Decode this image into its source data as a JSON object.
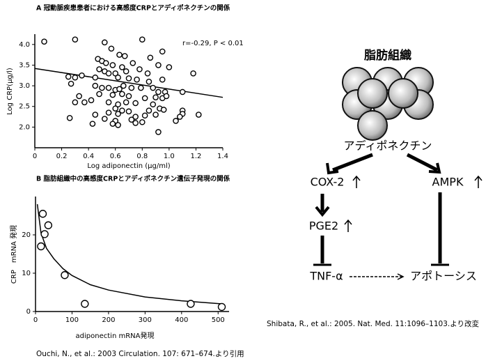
{
  "chart_data": [
    {
      "type": "scatter",
      "title": "A 冠動脈疾患患者における高感度CRPとアディポネクチンの関係",
      "x_label": "Log adiponectin (μg/ml)",
      "y_label": "Log CRP(μg/l)",
      "annotation": "r=-0.29, P < 0.01",
      "color": "#000000",
      "xlim": [
        0,
        1.4
      ],
      "ylim": [
        1.5,
        4.25
      ],
      "xticks": [
        0,
        0.2,
        0.4,
        0.6,
        0.8,
        {
          "value": 1,
          "label": "1.0"
        },
        1.2,
        1.4
      ],
      "yticks": [
        {
          "value": 2,
          "label": "2.0"
        },
        2.5,
        {
          "value": 3,
          "label": "3.0"
        },
        3.5,
        {
          "value": 4,
          "label": "4.0"
        }
      ],
      "x": [
        0.07,
        0.3,
        0.52,
        0.8,
        0.57,
        0.63,
        0.67,
        0.86,
        0.95,
        0.47,
        0.5,
        0.53,
        0.58,
        0.65,
        0.73,
        0.92,
        0.48,
        0.52,
        0.55,
        0.6,
        0.68,
        0.78,
        0.84,
        1.0,
        1.18,
        0.25,
        0.3,
        0.35,
        0.45,
        0.62,
        0.7,
        0.76,
        0.85,
        0.95,
        0.27,
        0.45,
        0.5,
        0.55,
        0.6,
        0.63,
        0.66,
        0.72,
        0.79,
        0.88,
        0.92,
        0.97,
        1.1,
        0.33,
        0.48,
        0.58,
        0.65,
        0.7,
        0.82,
        0.9,
        0.95,
        0.98,
        0.3,
        0.37,
        0.42,
        0.55,
        0.62,
        0.68,
        0.75,
        0.88,
        0.6,
        0.65,
        0.7,
        0.85,
        0.93,
        0.96,
        1.1,
        1.1,
        0.45,
        0.55,
        0.62,
        0.75,
        0.82,
        0.9,
        1.08,
        1.22,
        0.26,
        0.52,
        0.6,
        0.72,
        0.8,
        1.05,
        0.43,
        0.58,
        0.62,
        0.75,
        0.92
      ],
      "values": [
        4.07,
        4.12,
        4.05,
        4.12,
        3.9,
        3.75,
        3.72,
        3.68,
        3.83,
        3.65,
        3.6,
        3.55,
        3.5,
        3.45,
        3.55,
        3.5,
        3.4,
        3.35,
        3.3,
        3.3,
        3.35,
        3.4,
        3.3,
        3.45,
        3.3,
        3.22,
        3.2,
        3.25,
        3.2,
        3.2,
        3.18,
        3.15,
        3.1,
        3.15,
        3.05,
        3.0,
        2.95,
        2.95,
        2.9,
        2.92,
        3.0,
        2.95,
        2.95,
        2.95,
        2.85,
        2.85,
        2.85,
        2.75,
        2.8,
        2.78,
        2.8,
        2.75,
        2.7,
        2.72,
        2.7,
        2.75,
        2.6,
        2.6,
        2.65,
        2.6,
        2.55,
        2.6,
        2.58,
        2.55,
        2.45,
        2.4,
        2.38,
        2.4,
        2.45,
        2.42,
        2.4,
        2.32,
        2.3,
        2.35,
        2.32,
        2.25,
        2.28,
        2.3,
        2.25,
        2.3,
        2.22,
        2.2,
        2.15,
        2.18,
        2.12,
        2.15,
        2.08,
        2.08,
        2.05,
        2.1,
        1.88
      ],
      "fit": {
        "x": [
          0,
          1.4
        ],
        "values": [
          3.42,
          2.72
        ]
      }
    },
    {
      "type": "scatter",
      "title": "B 脂肪組織中の高感度CRPとアディポネクチン遺伝子発現の関係",
      "x_label": "adiponectin mRNA発現",
      "y_label": "CRP　mRNA 発現",
      "color": "#000000",
      "xlim": [
        0,
        530
      ],
      "ylim": [
        0,
        30
      ],
      "xticks": [
        0,
        100,
        200,
        300,
        400,
        500
      ],
      "yticks": [
        0,
        10,
        20
      ],
      "x": [
        15,
        20,
        25,
        35,
        80,
        135,
        425,
        510
      ],
      "values": [
        17,
        25.5,
        20.2,
        22.5,
        9.5,
        2,
        2,
        1.2
      ],
      "fit": {
        "x": [
          5,
          15,
          30,
          50,
          75,
          100,
          150,
          200,
          300,
          400,
          510
        ],
        "values": [
          28,
          20.5,
          16.5,
          13.8,
          11.2,
          9.4,
          7,
          5.6,
          3.8,
          2.8,
          2
        ]
      }
    }
  ],
  "diagram": {
    "title": "脂肪組織",
    "nodes": [
      "アディポネクチン",
      "COX-2",
      "AMPK",
      "PGE2",
      "TNF-α",
      "アポトーシス"
    ]
  },
  "citations": [
    "Ouchi, N., et al.: 2003 Circulation. 107: 671–674.より引用",
    "Shibata, R., et al.: 2005. Nat. Med. 11:1096–1103.より改変"
  ]
}
